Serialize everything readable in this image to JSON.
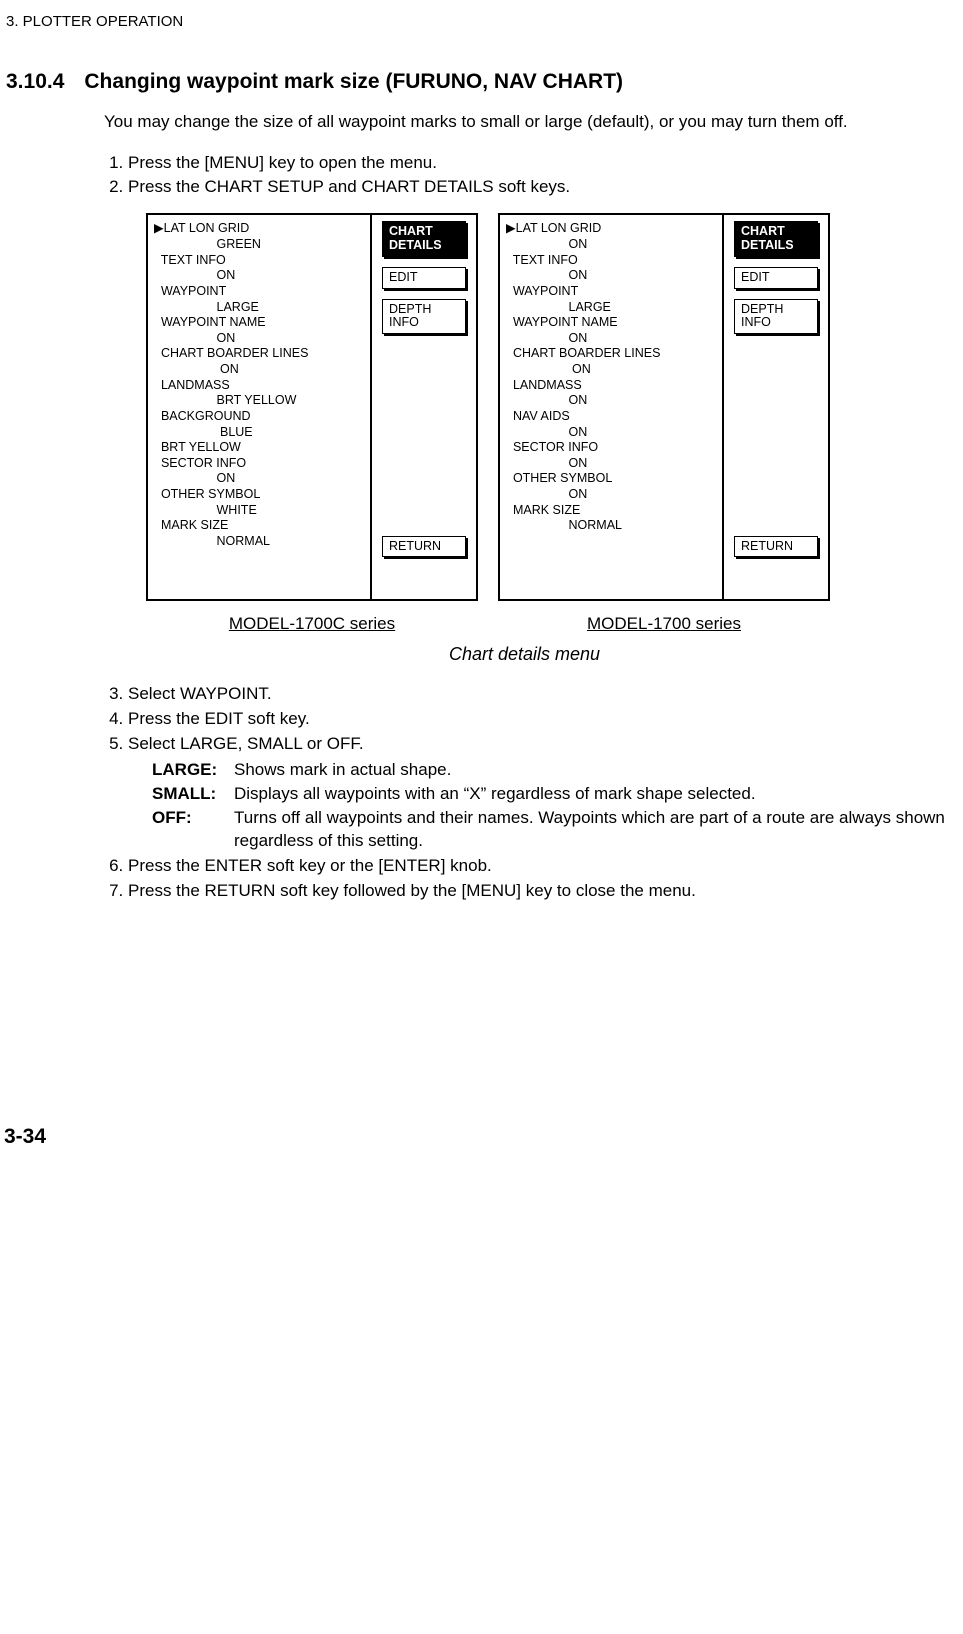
{
  "header": "3. PLOTTER OPERATION",
  "section": {
    "num": "3.10.4",
    "title": "Changing waypoint mark size (FURUNO, NAV CHART)"
  },
  "intro": "You may change the size of all waypoint marks to small or large (default), or you may turn them off.",
  "step1": "Press the [MENU] key to open the menu.",
  "step2": "Press the CHART SETUP and CHART DETAILS soft keys.",
  "diagramA": {
    "rows": [
      "▶LAT LON GRID",
      "                  GREEN",
      "  TEXT INFO",
      "                  ON",
      "  WAYPOINT",
      "                  LARGE",
      "  WAYPOINT NAME",
      "                  ON",
      "  CHART BOARDER LINES",
      "                   ON",
      "  LANDMASS",
      "                  BRT YELLOW",
      "  BACKGROUND",
      "                   BLUE",
      "  BRT YELLOW",
      "  SECTOR INFO",
      "                  ON",
      "  OTHER SYMBOL",
      "                  WHITE",
      "  MARK SIZE",
      "                  NORMAL"
    ],
    "softkeys": {
      "chart_details": "CHART\nDETAILS",
      "edit": "EDIT",
      "depth_info": "DEPTH\nINFO",
      "ret": "RETURN"
    },
    "model": "MODEL-1700C series"
  },
  "diagramB": {
    "rows": [
      "▶LAT LON GRID",
      "                  ON",
      "  TEXT INFO",
      "                  ON",
      "  WAYPOINT",
      "                  LARGE",
      "  WAYPOINT NAME",
      "                  ON",
      "  CHART BOARDER LINES",
      "                   ON",
      "  LANDMASS",
      "                  ON",
      "  NAV AIDS",
      "                  ON",
      "  SECTOR INFO",
      "                  ON",
      "  OTHER SYMBOL",
      "                  ON",
      "  MARK SIZE",
      "                  NORMAL"
    ],
    "softkeys": {
      "chart_details": "CHART\nDETAILS",
      "edit": "EDIT",
      "depth_info": "DEPTH\nINFO",
      "ret": "RETURN"
    },
    "model": "MODEL-1700 series"
  },
  "caption": "Chart details menu",
  "step3": "Select WAYPOINT.",
  "step4": "Press the EDIT soft key.",
  "step5": "Select LARGE, SMALL or OFF.",
  "opts": {
    "large_label": "LARGE:",
    "large_body": "Shows mark in actual shape.",
    "small_label": "SMALL:",
    "small_body": "Displays all waypoints with an “X” regardless of mark shape selected.",
    "off_label": "OFF:",
    "off_body": "Turns off all waypoints and their names. Waypoints which are part of a route are always shown regardless of this setting."
  },
  "step6": "Press the ENTER soft key or the [ENTER] knob.",
  "step7": "Press the RETURN soft key followed by the [MENU] key to close the menu.",
  "page_num": "3-34"
}
